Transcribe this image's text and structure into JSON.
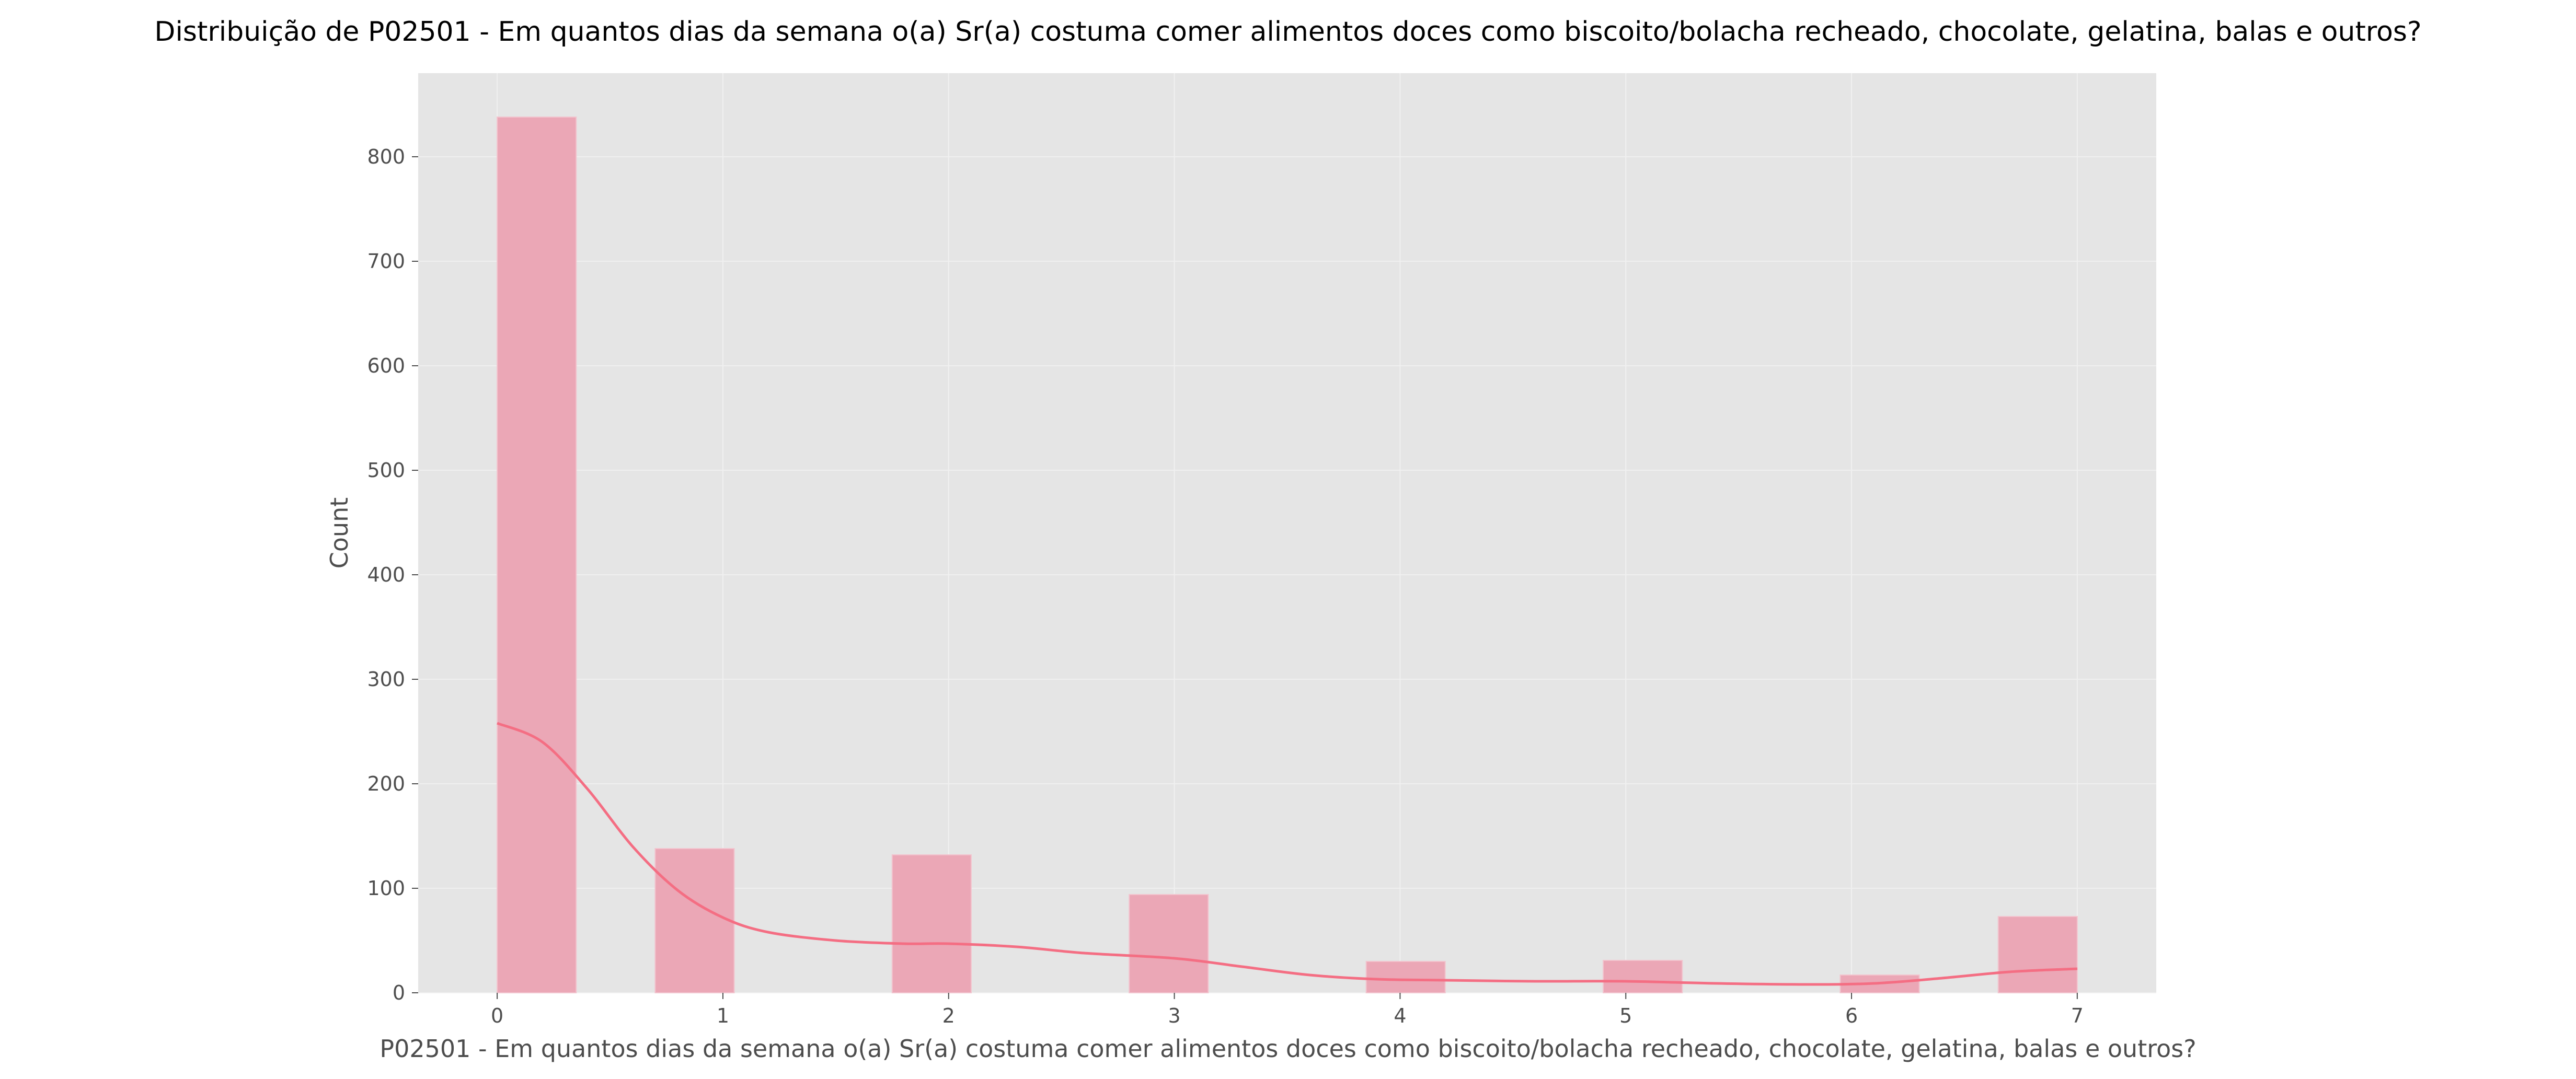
{
  "chart_data": {
    "type": "bar",
    "title": "Distribuição de P02501 - Em quantos dias da semana o(a) Sr(a) costuma comer alimentos doces como biscoito/bolacha recheado, chocolate, gelatina, balas e outros?",
    "xlabel": "P02501 - Em quantos dias da semana o(a) Sr(a) costuma comer alimentos doces como biscoito/bolacha recheado, chocolate, gelatina, balas e outros?",
    "ylabel": "Count",
    "xlim": [
      -0.35,
      7.35
    ],
    "ylim": [
      0,
      880
    ],
    "x_ticks": [
      0,
      1,
      2,
      3,
      4,
      5,
      6,
      7
    ],
    "y_ticks": [
      0,
      100,
      200,
      300,
      400,
      500,
      600,
      700,
      800
    ],
    "grid": true,
    "bins": [
      {
        "start": 0.0,
        "end": 0.35,
        "count": 838
      },
      {
        "start": 0.7,
        "end": 1.05,
        "count": 138
      },
      {
        "start": 1.75,
        "end": 2.1,
        "count": 132
      },
      {
        "start": 2.8,
        "end": 3.15,
        "count": 94
      },
      {
        "start": 3.85,
        "end": 4.2,
        "count": 30
      },
      {
        "start": 4.9,
        "end": 5.25,
        "count": 31
      },
      {
        "start": 5.95,
        "end": 6.3,
        "count": 17
      },
      {
        "start": 6.65,
        "end": 7.0,
        "count": 73
      }
    ],
    "kde": {
      "x": [
        0,
        0.2,
        0.4,
        0.6,
        0.8,
        1.0,
        1.2,
        1.5,
        1.8,
        2.0,
        2.3,
        2.6,
        3.0,
        3.3,
        3.6,
        3.9,
        4.2,
        4.6,
        5.0,
        5.4,
        5.8,
        6.1,
        6.4,
        6.7,
        7.0
      ],
      "y": [
        258,
        240,
        195,
        140,
        98,
        72,
        58,
        50,
        47,
        47,
        44,
        38,
        33,
        25,
        17,
        13,
        12,
        11,
        11,
        9,
        8,
        9,
        14,
        20,
        23
      ]
    },
    "colors": {
      "bar_fill": "#eba7b6",
      "bar_edge": "#f2c4ce",
      "kde_line": "#f46e83",
      "plot_background": "#e5e5e5",
      "grid": "#f0f0f0",
      "text": "#4d4d4d"
    }
  }
}
